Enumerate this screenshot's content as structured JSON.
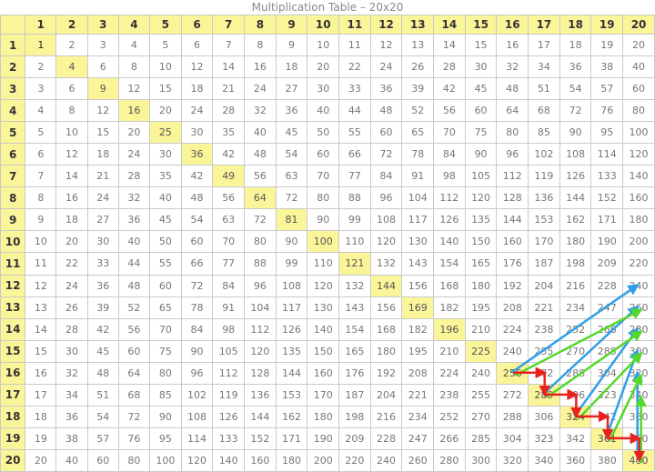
{
  "title": "Multiplication Table – 20x20",
  "size": 20,
  "colors": {
    "header_bg": "#fbf59a",
    "diagonal_bg": "#fbf59a",
    "blue_arrow": "#2f9fe8",
    "green_arrow": "#55d82b",
    "red_arrow": "#e8221e"
  },
  "headers": [
    1,
    2,
    3,
    4,
    5,
    6,
    7,
    8,
    9,
    10,
    11,
    12,
    13,
    14,
    15,
    16,
    17,
    18,
    19,
    20
  ],
  "rows": [
    [
      1,
      2,
      3,
      4,
      5,
      6,
      7,
      8,
      9,
      10,
      11,
      12,
      13,
      14,
      15,
      16,
      17,
      18,
      19,
      20
    ],
    [
      2,
      4,
      6,
      8,
      10,
      12,
      14,
      16,
      18,
      20,
      22,
      24,
      26,
      28,
      30,
      32,
      34,
      36,
      38,
      40
    ],
    [
      3,
      6,
      9,
      12,
      15,
      18,
      21,
      24,
      27,
      30,
      33,
      36,
      39,
      42,
      45,
      48,
      51,
      54,
      57,
      60
    ],
    [
      4,
      8,
      12,
      16,
      20,
      24,
      28,
      32,
      36,
      40,
      44,
      48,
      52,
      56,
      60,
      64,
      68,
      72,
      76,
      80
    ],
    [
      5,
      10,
      15,
      20,
      25,
      30,
      35,
      40,
      45,
      50,
      55,
      60,
      65,
      70,
      75,
      80,
      85,
      90,
      95,
      100
    ],
    [
      6,
      12,
      18,
      24,
      30,
      36,
      42,
      48,
      54,
      60,
      66,
      72,
      78,
      84,
      90,
      96,
      102,
      108,
      114,
      120
    ],
    [
      7,
      14,
      21,
      28,
      35,
      42,
      49,
      56,
      63,
      70,
      77,
      84,
      91,
      98,
      105,
      112,
      119,
      126,
      133,
      140
    ],
    [
      8,
      16,
      24,
      32,
      40,
      48,
      56,
      64,
      72,
      80,
      88,
      96,
      104,
      112,
      120,
      128,
      136,
      144,
      152,
      160
    ],
    [
      9,
      18,
      27,
      36,
      45,
      54,
      63,
      72,
      81,
      90,
      99,
      108,
      117,
      126,
      135,
      144,
      153,
      162,
      171,
      180
    ],
    [
      10,
      20,
      30,
      40,
      50,
      60,
      70,
      80,
      90,
      100,
      110,
      120,
      130,
      140,
      150,
      160,
      170,
      180,
      190,
      200
    ],
    [
      11,
      22,
      33,
      44,
      55,
      66,
      77,
      88,
      99,
      110,
      121,
      132,
      143,
      154,
      165,
      176,
      187,
      198,
      209,
      220
    ],
    [
      12,
      24,
      36,
      48,
      60,
      72,
      84,
      96,
      108,
      120,
      132,
      144,
      156,
      168,
      180,
      192,
      204,
      216,
      228,
      240
    ],
    [
      13,
      26,
      39,
      52,
      65,
      78,
      91,
      104,
      117,
      130,
      143,
      156,
      169,
      182,
      195,
      208,
      221,
      234,
      247,
      260
    ],
    [
      14,
      28,
      42,
      56,
      70,
      84,
      98,
      112,
      126,
      140,
      154,
      168,
      182,
      196,
      210,
      224,
      238,
      252,
      266,
      280
    ],
    [
      15,
      30,
      45,
      60,
      75,
      90,
      105,
      120,
      135,
      150,
      165,
      180,
      195,
      210,
      225,
      240,
      255,
      270,
      285,
      300
    ],
    [
      16,
      32,
      48,
      64,
      80,
      96,
      112,
      128,
      144,
      160,
      176,
      192,
      208,
      224,
      240,
      256,
      272,
      288,
      304,
      320
    ],
    [
      17,
      34,
      51,
      68,
      85,
      102,
      119,
      136,
      153,
      170,
      187,
      204,
      221,
      238,
      255,
      272,
      289,
      306,
      323,
      340
    ],
    [
      18,
      36,
      54,
      72,
      90,
      108,
      126,
      144,
      162,
      180,
      198,
      216,
      234,
      252,
      270,
      288,
      306,
      324,
      342,
      360
    ],
    [
      19,
      38,
      57,
      76,
      95,
      114,
      133,
      152,
      171,
      190,
      209,
      228,
      247,
      266,
      285,
      304,
      323,
      342,
      361,
      380
    ],
    [
      20,
      40,
      60,
      80,
      100,
      120,
      140,
      160,
      180,
      200,
      220,
      240,
      260,
      280,
      300,
      320,
      340,
      360,
      380,
      400
    ]
  ],
  "arrows": {
    "blue": [
      [
        16,
        16,
        12,
        20
      ],
      [
        17,
        17,
        13,
        20
      ],
      [
        18,
        18,
        14,
        20
      ],
      [
        19,
        19,
        15,
        20
      ],
      [
        20,
        20,
        16,
        20
      ]
    ],
    "green": [
      [
        16,
        16,
        13,
        20
      ],
      [
        17,
        17,
        14,
        20
      ],
      [
        18,
        18,
        15,
        20
      ],
      [
        19,
        19,
        16,
        20
      ],
      [
        20,
        20,
        17,
        20
      ]
    ],
    "red": [
      [
        16,
        16,
        16,
        17
      ],
      [
        16,
        17,
        17,
        17
      ],
      [
        17,
        17,
        17,
        18
      ],
      [
        17,
        18,
        18,
        18
      ],
      [
        18,
        18,
        18,
        19
      ],
      [
        18,
        19,
        19,
        19
      ],
      [
        19,
        19,
        19,
        20
      ],
      [
        19,
        20,
        20,
        20
      ]
    ]
  }
}
